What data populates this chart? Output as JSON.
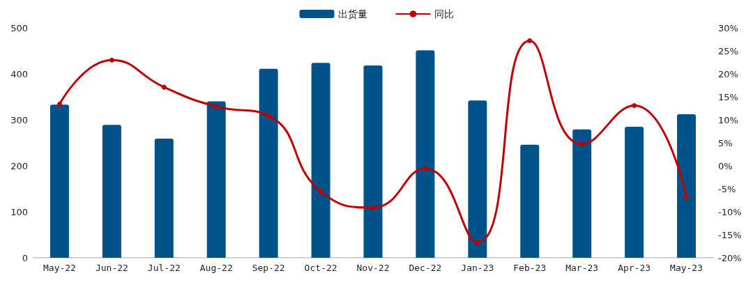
{
  "chart_data": {
    "type": "bar",
    "categories": [
      "May-22",
      "Jun-22",
      "Jul-22",
      "Aug-22",
      "Sep-22",
      "Oct-22",
      "Nov-22",
      "Dec-22",
      "Jan-23",
      "Feb-23",
      "Mar-23",
      "Apr-23",
      "May-23"
    ],
    "series": [
      {
        "name": "出货量",
        "type": "bar",
        "color": "#00538a",
        "values": [
          333,
          289,
          259,
          340,
          411,
          424,
          418,
          451,
          342,
          246,
          279,
          285,
          312
        ]
      },
      {
        "name": "同比",
        "type": "line",
        "axis": "y2",
        "color": "#c00000",
        "marker": "circle",
        "values": [
          13.4,
          23.0,
          17.1,
          12.9,
          10.9,
          -5.6,
          -9.1,
          -0.6,
          -16.7,
          27.2,
          4.7,
          13.1,
          -6.8
        ]
      }
    ],
    "ylim": [
      0,
      500
    ],
    "yticks": [
      0,
      100,
      200,
      300,
      400,
      500
    ],
    "y2lim": [
      -20,
      30
    ],
    "y2ticks": [
      {
        "value": -20,
        "label": "-20%"
      },
      {
        "value": -15,
        "label": "-15%"
      },
      {
        "value": -10,
        "label": "-10%"
      },
      {
        "value": -5,
        "label": "-5%"
      },
      {
        "value": 0,
        "label": "0%"
      },
      {
        "value": 5,
        "label": "5%"
      },
      {
        "value": 10,
        "label": "10%"
      },
      {
        "value": 15,
        "label": "15%"
      },
      {
        "value": 20,
        "label": "20%"
      },
      {
        "value": 25,
        "label": "25%"
      },
      {
        "value": 30,
        "label": "30%"
      }
    ],
    "grid": false,
    "legend": "top"
  }
}
